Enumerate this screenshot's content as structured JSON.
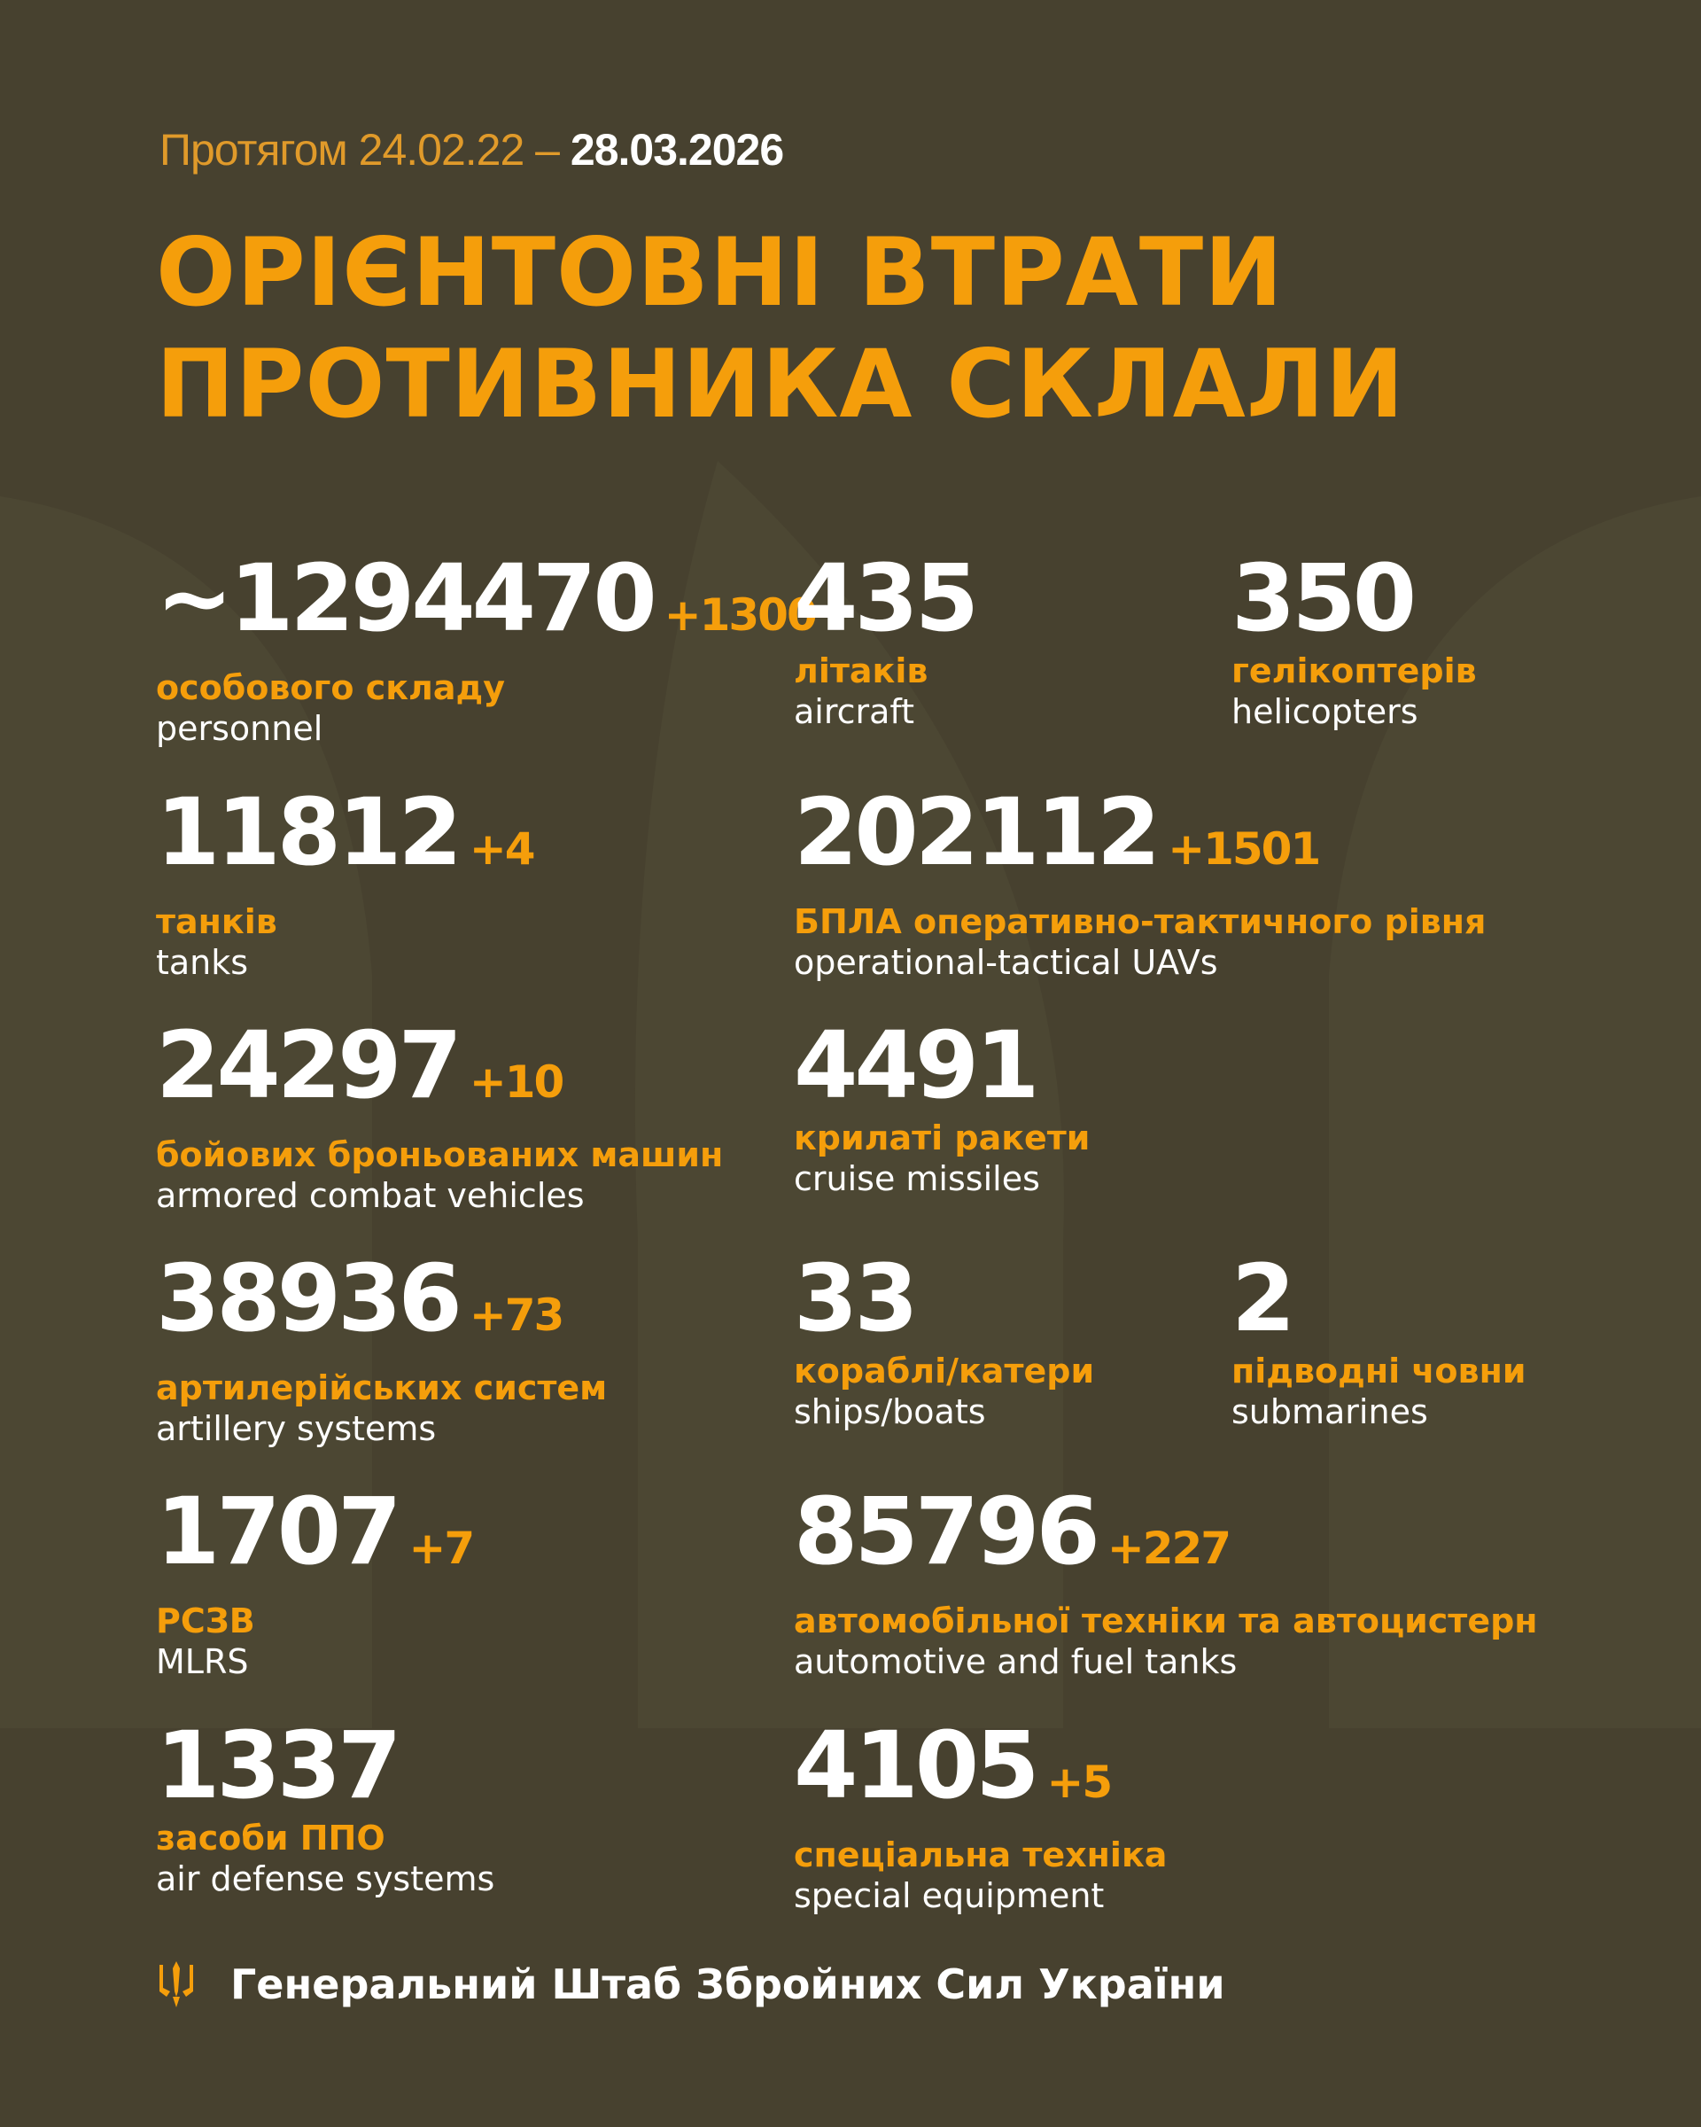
{
  "header": {
    "date_from": "Протягом 24.02.22 –",
    "date_to": "28.03.2026",
    "title_line1": "ОРІЄНТОВНІ ВТРАТИ",
    "title_line2": "ПРОТИВНИКА СКЛАЛИ"
  },
  "colors": {
    "background": "#47412f",
    "accent": "#f59e0b",
    "text": "#ffffff"
  },
  "stats": [
    {
      "value": "~1294470",
      "delta": "+1300",
      "ua": "особового складу",
      "en": "personnel"
    },
    {
      "value": "435",
      "delta": "",
      "ua": "літаків",
      "en": "aircraft"
    },
    {
      "value": "350",
      "delta": "",
      "ua": "гелікоптерів",
      "en": "helicopters"
    },
    {
      "value": "11812",
      "delta": "+4",
      "ua": "танків",
      "en": "tanks"
    },
    {
      "value": "202112",
      "delta": "+1501",
      "ua": "БПЛА оперативно-тактичного рівня",
      "en": "operational-tactical UAVs"
    },
    {
      "value": "24297",
      "delta": "+10",
      "ua": "бойових броньованих машин",
      "en": "armored combat vehicles"
    },
    {
      "value": "4491",
      "delta": "",
      "ua": "крилаті ракети",
      "en": "cruise missiles"
    },
    {
      "value": "38936",
      "delta": "+73",
      "ua": "артилерійських систем",
      "en": "artillery systems"
    },
    {
      "value": "33",
      "delta": "",
      "ua": "кораблі/катери",
      "en": "ships/boats"
    },
    {
      "value": "2",
      "delta": "",
      "ua": "підводні човни",
      "en": "submarines"
    },
    {
      "value": "1707",
      "delta": "+7",
      "ua": "РСЗВ",
      "en": "MLRS"
    },
    {
      "value": "85796",
      "delta": "+227",
      "ua": "автомобільної техніки та автоцистерн",
      "en": "automotive and fuel tanks"
    },
    {
      "value": "1337",
      "delta": "",
      "ua": "засоби ППО",
      "en": "air defense systems"
    },
    {
      "value": "4105",
      "delta": "+5",
      "ua": "спеціальна техніка",
      "en": "special equipment"
    }
  ],
  "footer": {
    "icon": "trident-icon",
    "text": "Генеральний Штаб Збройних Сил України"
  }
}
